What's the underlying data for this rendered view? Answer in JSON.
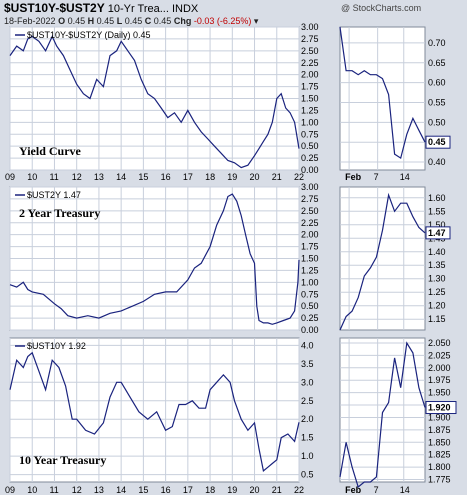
{
  "header": {
    "title": "$UST10Y-$UST2Y",
    "title_rest": "10-Yr Trea...",
    "exchange": "INDX",
    "logo": "@ StockCharts.com",
    "date": "18-Feb-2022",
    "o_label": "O",
    "o": "0.45",
    "h_label": "H",
    "h": "0.45",
    "l_label": "L",
    "l": "0.45",
    "c_label": "C",
    "c": "0.45",
    "chg_label": "Chg",
    "chg": "-0.03 (-6.25%)",
    "chg_color": "#c00000"
  },
  "colors": {
    "line": "#1a237e",
    "panel": "#ffffff",
    "grid": "#c8cfdc",
    "background": "#d8dde6"
  },
  "chart_data": [
    {
      "type": "line",
      "name": "Yield Curve",
      "legend": "$UST10Y-$UST2Y (Daily) 0.45",
      "long_ylim": [
        0,
        3.0
      ],
      "long_yticks": [
        "0.00",
        "0.25",
        "0.50",
        "0.75",
        "1.00",
        "1.25",
        "1.50",
        "1.75",
        "2.00",
        "2.25",
        "2.50",
        "2.75",
        "3.00"
      ],
      "long_x": [
        9,
        9.3,
        9.6,
        9.8,
        10,
        10.3,
        10.6,
        10.9,
        11.1,
        11.4,
        11.7,
        12,
        12.3,
        12.6,
        12.9,
        13.2,
        13.5,
        13.8,
        14,
        14.3,
        14.6,
        14.9,
        15.2,
        15.5,
        15.8,
        16.1,
        16.4,
        16.7,
        17,
        17.3,
        17.6,
        17.9,
        18.2,
        18.5,
        18.8,
        19.1,
        19.4,
        19.7,
        20,
        20.2,
        20.4,
        20.6,
        20.8,
        21,
        21.2,
        21.4,
        21.6,
        21.8,
        22
      ],
      "long_y": [
        2.4,
        2.6,
        2.5,
        2.75,
        2.8,
        2.7,
        2.5,
        2.8,
        2.6,
        2.4,
        2.1,
        1.8,
        1.6,
        1.5,
        1.9,
        1.75,
        2.4,
        2.5,
        2.7,
        2.5,
        2.3,
        1.9,
        1.6,
        1.5,
        1.3,
        1.1,
        1.2,
        1.0,
        1.25,
        1.0,
        0.8,
        0.65,
        0.5,
        0.35,
        0.2,
        0.15,
        0.05,
        0.1,
        0.3,
        0.45,
        0.6,
        0.75,
        1.0,
        1.5,
        1.6,
        1.3,
        1.2,
        1.0,
        0.45
      ],
      "short_ylim": [
        0.38,
        0.74
      ],
      "short_yticks": [
        "0.40",
        "0.45",
        "0.50",
        "0.55",
        "0.60",
        "0.65",
        "0.70"
      ],
      "short_y": [
        0.74,
        0.63,
        0.63,
        0.62,
        0.63,
        0.62,
        0.62,
        0.61,
        0.57,
        0.42,
        0.41,
        0.47,
        0.51,
        0.48,
        0.45
      ],
      "last": "0.45"
    },
    {
      "type": "line",
      "name": "2 Year Treasury",
      "legend": "$UST2Y 1.47",
      "long_ylim": [
        0,
        3.0
      ],
      "long_yticks": [
        "0.00",
        "0.25",
        "0.50",
        "0.75",
        "1.00",
        "1.25",
        "1.50",
        "1.75",
        "2.00",
        "2.25",
        "2.50",
        "2.75",
        "3.00"
      ],
      "long_x": [
        9,
        9.3,
        9.6,
        9.8,
        10,
        10.5,
        11,
        11.3,
        11.6,
        12,
        12.5,
        13,
        13.5,
        14,
        14.5,
        15,
        15.5,
        16,
        16.5,
        17,
        17.3,
        17.6,
        18,
        18.3,
        18.6,
        18.8,
        19,
        19.2,
        19.4,
        19.6,
        19.8,
        20,
        20.1,
        20.2,
        20.4,
        20.6,
        20.8,
        21,
        21.3,
        21.6,
        21.8,
        21.95,
        22
      ],
      "long_y": [
        0.95,
        0.9,
        1.0,
        0.85,
        0.8,
        0.75,
        0.55,
        0.45,
        0.3,
        0.25,
        0.3,
        0.25,
        0.35,
        0.4,
        0.5,
        0.6,
        0.75,
        0.8,
        0.8,
        1.05,
        1.3,
        1.4,
        1.75,
        2.2,
        2.5,
        2.8,
        2.85,
        2.7,
        2.4,
        2.0,
        1.6,
        1.4,
        0.5,
        0.2,
        0.15,
        0.15,
        0.12,
        0.15,
        0.2,
        0.25,
        0.4,
        1.0,
        1.47
      ],
      "short_ylim": [
        1.11,
        1.64
      ],
      "short_yticks": [
        "1.15",
        "1.20",
        "1.25",
        "1.30",
        "1.35",
        "1.40",
        "1.45",
        "1.50",
        "1.55",
        "1.60"
      ],
      "short_y": [
        1.11,
        1.16,
        1.18,
        1.23,
        1.31,
        1.34,
        1.38,
        1.48,
        1.61,
        1.55,
        1.58,
        1.58,
        1.53,
        1.49,
        1.47
      ],
      "last": "1.47"
    },
    {
      "type": "line",
      "name": "10 Year Treasury",
      "legend": "$UST10Y 1.92",
      "long_ylim": [
        0.3,
        4.2
      ],
      "long_yticks": [
        "0.5",
        "1.0",
        "1.5",
        "2.0",
        "2.5",
        "3.0",
        "3.5",
        "4.0"
      ],
      "long_x": [
        9,
        9.3,
        9.6,
        9.8,
        10,
        10.3,
        10.6,
        10.9,
        11.2,
        11.5,
        11.8,
        12,
        12.4,
        12.8,
        13.2,
        13.5,
        13.8,
        14,
        14.4,
        14.8,
        15.2,
        15.6,
        16,
        16.3,
        16.6,
        16.9,
        17.2,
        17.5,
        17.8,
        18,
        18.3,
        18.6,
        18.9,
        19.1,
        19.4,
        19.7,
        20,
        20.2,
        20.4,
        20.6,
        20.8,
        21,
        21.2,
        21.5,
        21.8,
        22
      ],
      "long_y": [
        2.8,
        3.6,
        3.4,
        3.7,
        3.8,
        3.3,
        2.8,
        3.6,
        3.4,
        2.9,
        2.0,
        2.0,
        1.7,
        1.6,
        1.9,
        2.6,
        3.0,
        3.0,
        2.6,
        2.2,
        2.0,
        2.2,
        1.7,
        1.8,
        2.4,
        2.4,
        2.5,
        2.3,
        2.3,
        2.8,
        3.0,
        3.2,
        3.0,
        2.5,
        2.0,
        1.7,
        1.9,
        1.2,
        0.6,
        0.7,
        0.8,
        0.9,
        1.5,
        1.6,
        1.4,
        1.92
      ],
      "short_ylim": [
        1.77,
        2.06
      ],
      "short_yticks": [
        "1.775",
        "1.800",
        "1.825",
        "1.850",
        "1.875",
        "1.900",
        "1.925",
        "1.950",
        "1.975",
        "2.000",
        "2.025",
        "2.050"
      ],
      "short_y": [
        1.78,
        1.85,
        1.8,
        1.76,
        1.77,
        1.77,
        1.78,
        1.91,
        1.93,
        2.02,
        1.96,
        2.05,
        2.03,
        1.96,
        1.92
      ],
      "last": "1.920"
    }
  ],
  "x_axis_long": {
    "ticks": [
      "09",
      "10",
      "11",
      "12",
      "13",
      "14",
      "15",
      "16",
      "17",
      "18",
      "19",
      "20",
      "21",
      "22"
    ],
    "values": [
      9,
      10,
      11,
      12,
      13,
      14,
      15,
      16,
      17,
      18,
      19,
      20,
      21,
      22
    ]
  },
  "x_axis_short": {
    "ticks": [
      "Feb",
      "7",
      "14"
    ],
    "positions": [
      1.5,
      6.2,
      10.5
    ],
    "count": 15
  }
}
